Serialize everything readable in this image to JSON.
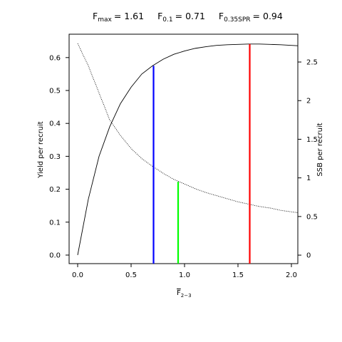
{
  "chart_data": {
    "type": "line",
    "title": [
      {
        "symbol": "F",
        "sub": "max",
        "text": "= 1.61"
      },
      {
        "symbol": "F",
        "sub": "0.1",
        "text": "= 0.71"
      },
      {
        "symbol": "F",
        "sub": "0.35SPR",
        "text": "= 0.94"
      }
    ],
    "xlabel": {
      "symbol": "F",
      "sub": "2−3"
    },
    "ylabel": "Yield per recruit",
    "y2label": "SSB per recruit",
    "x": [
      0,
      0.1,
      0.2,
      0.3,
      0.4,
      0.5,
      0.6,
      0.7,
      0.8,
      0.9,
      1.0,
      1.1,
      1.2,
      1.3,
      1.4,
      1.5,
      1.6,
      1.7,
      1.8,
      1.9,
      2.0,
      2.06
    ],
    "series": [
      {
        "color": "#000000",
        "dash": "solid",
        "axis": "y",
        "values": [
          0,
          0.17,
          0.3,
          0.39,
          0.46,
          0.51,
          0.55,
          0.575,
          0.595,
          0.61,
          0.62,
          0.628,
          0.633,
          0.637,
          0.639,
          0.64,
          0.641,
          0.641,
          0.64,
          0.639,
          0.637,
          0.636
        ]
      },
      {
        "color": "#000000",
        "dash": "dotted",
        "axis": "y2",
        "values": [
          2.74,
          2.45,
          2.1,
          1.75,
          1.55,
          1.38,
          1.25,
          1.15,
          1.06,
          0.98,
          0.92,
          0.86,
          0.81,
          0.77,
          0.73,
          0.69,
          0.66,
          0.63,
          0.61,
          0.58,
          0.56,
          0.55
        ]
      }
    ],
    "reference_lines": [
      {
        "x": 1.61,
        "y": 0.641,
        "axis": "y",
        "color": "#ff0000"
      },
      {
        "x": 0.71,
        "y": 0.575,
        "axis": "y",
        "color": "#0000ff"
      },
      {
        "x": 0.94,
        "y": 0.95,
        "axis": "y2",
        "color": "#00ff00"
      }
    ],
    "xlim": [
      -0.08,
      2.06
    ],
    "xticks": [
      {
        "value": 0,
        "label": "0.0"
      },
      0.5,
      {
        "value": 1,
        "label": "1.0"
      },
      1.5,
      {
        "value": 2,
        "label": "2.0"
      }
    ],
    "ylim": [
      -0.026,
      0.671
    ],
    "yticks": [
      {
        "value": 0,
        "label": "0.0"
      },
      0.1,
      0.2,
      0.3,
      0.4,
      0.5,
      0.6
    ],
    "y2lim": [
      -0.11,
      2.86
    ],
    "y2ticks": [
      0,
      0.5,
      1,
      1.5,
      2,
      2.5
    ]
  }
}
